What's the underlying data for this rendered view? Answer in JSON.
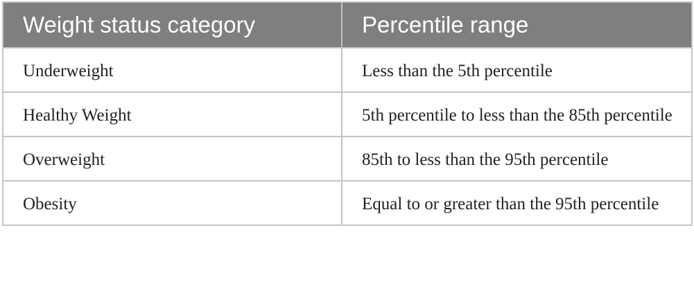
{
  "table": {
    "header": [
      "Weight status category",
      "Percentile range"
    ],
    "rows": [
      [
        "Underweight",
        "Less than the 5th percentile"
      ],
      [
        "Healthy Weight",
        "5th percentile to less than the 85th percentile"
      ],
      [
        "Overweight",
        "85th to less than the 95th percentile"
      ],
      [
        "Obesity",
        "Equal to or greater than the 95th percentile"
      ]
    ]
  }
}
